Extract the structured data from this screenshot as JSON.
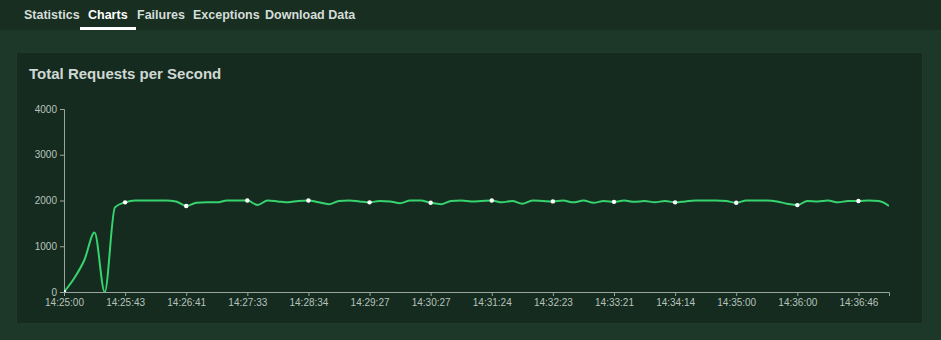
{
  "tabs": [
    "Statistics",
    "Charts",
    "Failures",
    "Exceptions",
    "Download Data"
  ],
  "active_tab": "Charts",
  "chart_data": {
    "type": "line",
    "title": "Total Requests per Second",
    "categories": [
      "14:25:00",
      null,
      null,
      null,
      null,
      null,
      "14:25:43",
      null,
      null,
      null,
      null,
      null,
      "14:26:41",
      null,
      null,
      null,
      null,
      null,
      "14:27:33",
      null,
      null,
      null,
      null,
      null,
      "14:28:34",
      null,
      null,
      null,
      null,
      null,
      "14:29:27",
      null,
      null,
      null,
      null,
      null,
      "14:30:27",
      null,
      null,
      null,
      null,
      null,
      "14:31:24",
      null,
      null,
      null,
      null,
      null,
      "14:32:23",
      null,
      null,
      null,
      null,
      null,
      "14:33:21",
      null,
      null,
      null,
      null,
      null,
      "14:34:14",
      null,
      null,
      null,
      null,
      null,
      "14:35:00",
      null,
      null,
      null,
      null,
      null,
      "14:36:00",
      null,
      null,
      null,
      null,
      null,
      "14:36:46",
      null,
      null,
      null
    ],
    "values": [
      0,
      300,
      700,
      1300,
      0,
      1850,
      1960,
      2000,
      2000,
      2000,
      2000,
      1980,
      1880,
      1950,
      1960,
      1960,
      2000,
      2000,
      2000,
      1900,
      2000,
      1980,
      1960,
      1990,
      2000,
      1960,
      1920,
      1990,
      2000,
      1980,
      1960,
      1990,
      1980,
      1940,
      2000,
      2000,
      1950,
      1920,
      1990,
      2000,
      1980,
      1990,
      2000,
      1960,
      1990,
      1930,
      2000,
      1990,
      1980,
      2000,
      1960,
      2000,
      1950,
      1990,
      1970,
      2000,
      1970,
      1990,
      1960,
      1990,
      1960,
      1980,
      2000,
      2000,
      2000,
      1990,
      1950,
      2000,
      2000,
      2000,
      1980,
      1930,
      1900,
      1990,
      1980,
      2000,
      1960,
      1990,
      1990,
      2000,
      1990,
      1880
    ],
    "color": "#36d36f",
    "marker": "circle",
    "ylim": [
      0,
      4000
    ],
    "yticks": [
      0,
      1000,
      2000,
      3000,
      4000
    ],
    "grid": false
  }
}
